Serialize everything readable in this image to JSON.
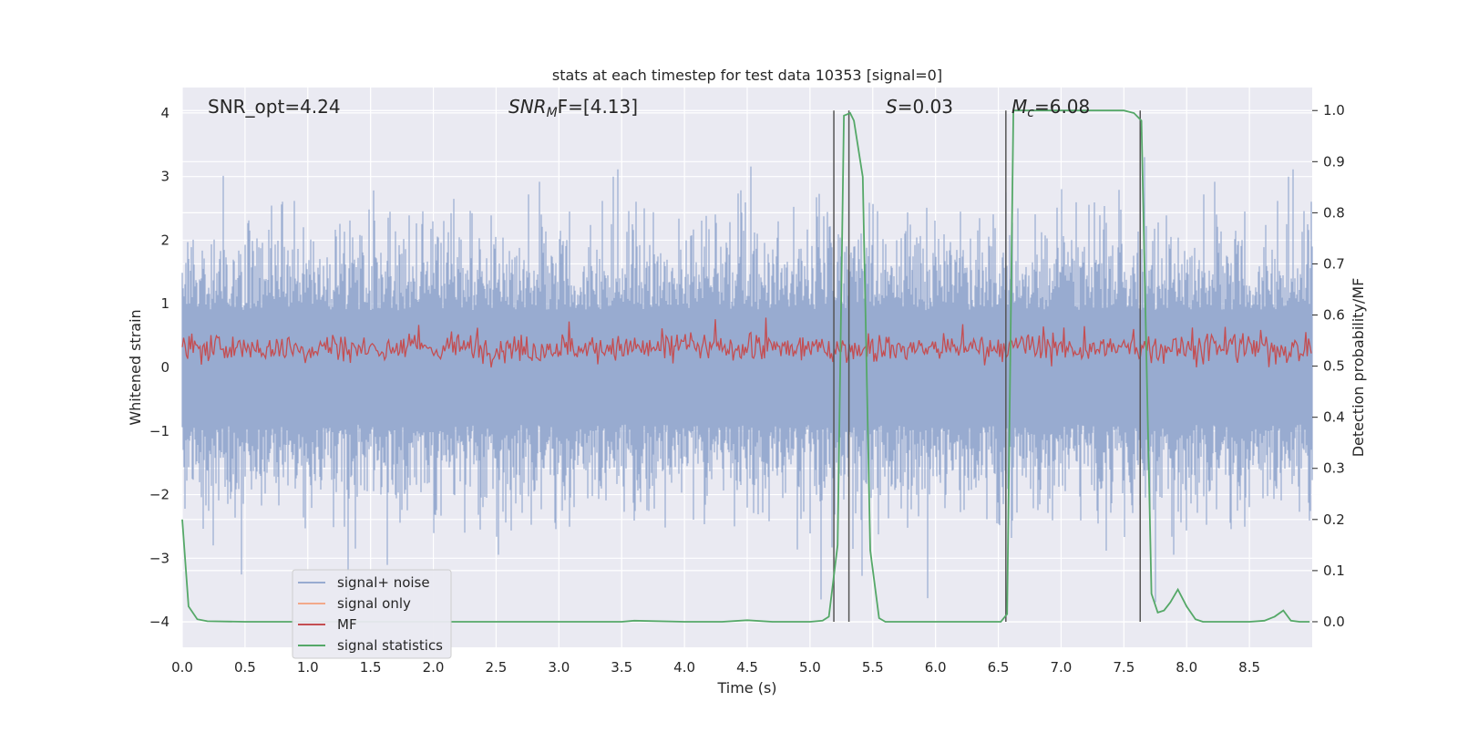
{
  "chart_data": {
    "type": "line",
    "title": "stats at each timestep for test data 10353 [signal=0]",
    "xlabel": "Time (s)",
    "ylabel_left": "Whitened strain",
    "ylabel_right": "Detection probability/MF",
    "xlim": [
      0,
      9.0
    ],
    "ylim_left": [
      -4.4,
      4.4
    ],
    "ylim_right": [
      -0.05,
      1.045
    ],
    "x_ticks": [
      "0.0",
      "0.5",
      "1.0",
      "1.5",
      "2.0",
      "2.5",
      "3.0",
      "3.5",
      "4.0",
      "4.5",
      "5.0",
      "5.5",
      "6.0",
      "6.5",
      "7.0",
      "7.5",
      "8.0",
      "8.5"
    ],
    "y_ticks_left": [
      "−4",
      "−3",
      "−2",
      "−1",
      "0",
      "1",
      "2",
      "3",
      "4"
    ],
    "y_ticks_right": [
      "0.0",
      "0.1",
      "0.2",
      "0.3",
      "0.4",
      "0.5",
      "0.6",
      "0.7",
      "0.8",
      "0.9",
      "1.0"
    ],
    "grid": true,
    "legend_position": "lower-left",
    "stats": {
      "snr_opt": "SNR_opt=4.24",
      "snr_mf_prefix": "SNR",
      "snr_mf_sub": "M",
      "snr_mf_suffix": "F=[4.13]",
      "s_symbol": "S",
      "s_value": "=0.03",
      "mc_symbol": "M",
      "mc_sub": "c",
      "mc_value": "=6.08"
    },
    "series": [
      {
        "name": "signal+ noise",
        "color": "#98abd0",
        "axis": "left",
        "description_only": "dense noise, approx range ±3.5"
      },
      {
        "name": "signal only",
        "color": "#f2a98a",
        "axis": "left"
      },
      {
        "name": "MF",
        "color": "#c44e52",
        "axis": "left",
        "approx_range": [
          0,
          0.85
        ]
      },
      {
        "name": "signal statistics",
        "color": "#55a868",
        "axis": "right",
        "x": [
          0.0,
          0.05,
          0.12,
          0.2,
          0.5,
          1.0,
          2.0,
          3.0,
          3.5,
          3.6,
          4.0,
          4.3,
          4.5,
          4.7,
          5.0,
          5.1,
          5.15,
          5.22,
          5.27,
          5.32,
          5.35,
          5.42,
          5.48,
          5.55,
          5.6,
          6.0,
          6.4,
          6.52,
          6.57,
          6.62,
          6.68,
          7.0,
          7.5,
          7.58,
          7.64,
          7.72,
          7.77,
          7.82,
          7.87,
          7.93,
          8.0,
          8.07,
          8.13,
          8.2,
          8.5,
          8.62,
          8.7,
          8.77,
          8.83,
          8.9,
          8.98
        ],
        "y": [
          0.2,
          0.03,
          0.005,
          0.001,
          0.0,
          0.0,
          0.0,
          0.0,
          0.0,
          0.002,
          0.0,
          0.0,
          0.003,
          0.0,
          0.0,
          0.002,
          0.01,
          0.15,
          0.99,
          0.995,
          0.98,
          0.87,
          0.14,
          0.007,
          0.0,
          0.0,
          0.0,
          0.0,
          0.015,
          1.0,
          1.0,
          1.0,
          1.0,
          0.995,
          0.98,
          0.055,
          0.018,
          0.022,
          0.038,
          0.063,
          0.03,
          0.005,
          0.0,
          0.0,
          0.0,
          0.002,
          0.01,
          0.022,
          0.002,
          0.0,
          0.0
        ]
      }
    ],
    "vertical_markers_x": [
      5.19,
      5.31,
      6.56,
      7.63
    ]
  },
  "colors": {
    "plot_background": "#eaeaf2",
    "grid": "#ffffff",
    "noise": "#98abd0",
    "mf": "#c44e52",
    "signal_stat": "#55a868",
    "marker": "#555555"
  }
}
